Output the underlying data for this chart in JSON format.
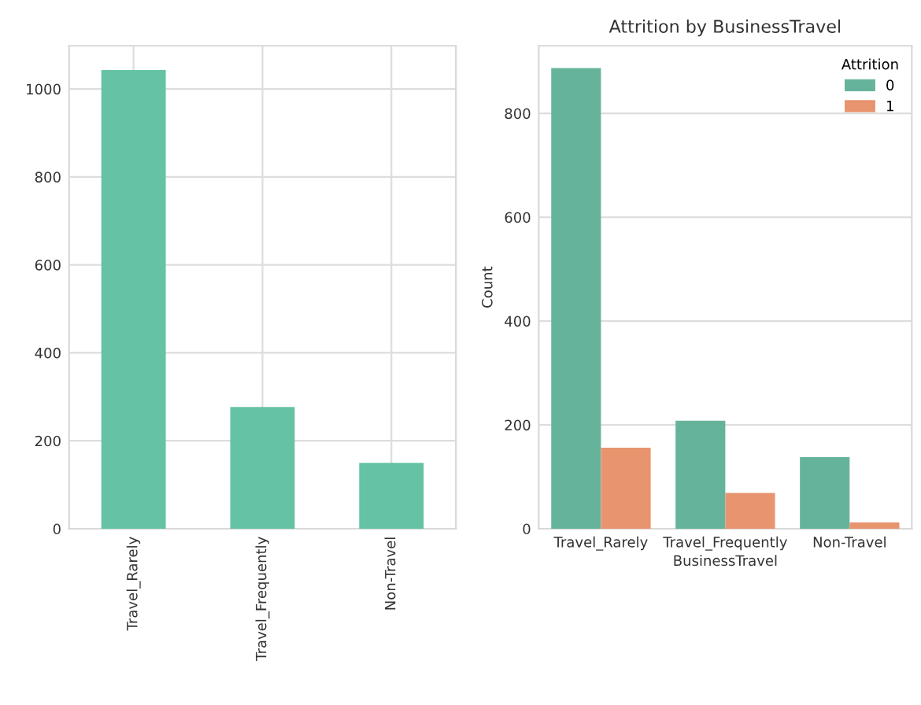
{
  "chart_data": [
    {
      "type": "bar",
      "categories": [
        "Travel_Rarely",
        "Travel_Frequently",
        "Non-Travel"
      ],
      "values": [
        1043,
        277,
        150
      ],
      "color": "#66c2a5",
      "ylim": [
        0,
        1098
      ],
      "yticks": [
        0,
        200,
        400,
        600,
        800,
        1000
      ],
      "grid": true
    },
    {
      "type": "bar",
      "title": "Attrition by BusinessTravel",
      "xlabel": "BusinessTravel",
      "ylabel": "Count",
      "legend_title": "Attrition",
      "legend": "top right",
      "categories": [
        "Travel_Rarely",
        "Travel_Frequently",
        "Non-Travel"
      ],
      "series": [
        {
          "name": "0",
          "color": "#66b39c",
          "values": [
            887,
            208,
            138
          ]
        },
        {
          "name": "1",
          "color": "#e8946e",
          "values": [
            156,
            69,
            12
          ]
        }
      ],
      "ylim": [
        0,
        930
      ],
      "yticks": [
        0,
        200,
        400,
        600,
        800
      ],
      "grid": "y"
    }
  ]
}
